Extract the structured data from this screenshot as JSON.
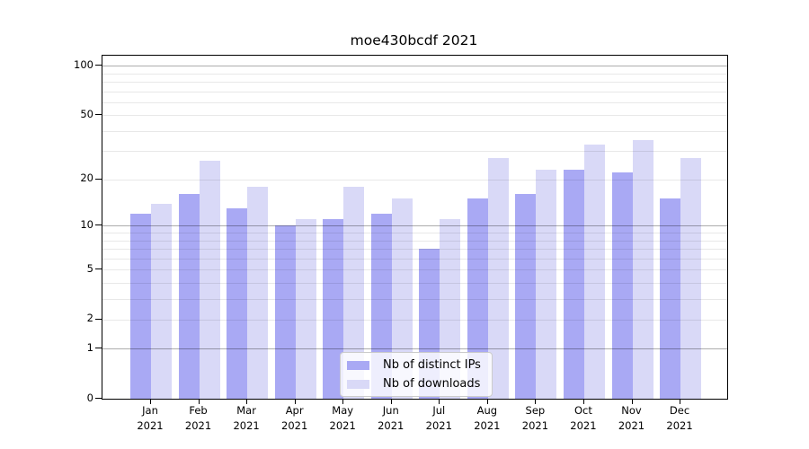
{
  "chart_data": {
    "type": "bar",
    "title": "moe430bcdf 2021",
    "x_categories": [
      "Jan",
      "Feb",
      "Mar",
      "Apr",
      "May",
      "Jun",
      "Jul",
      "Aug",
      "Sep",
      "Oct",
      "Nov",
      "Dec"
    ],
    "x_sublabel": "2021",
    "series": [
      {
        "name": "Nb of distinct IPs",
        "color": "#a9a9f4",
        "values": [
          12,
          16,
          13,
          10,
          11,
          12,
          7,
          15,
          16,
          23,
          22,
          15
        ]
      },
      {
        "name": "Nb of downloads",
        "color": "#d9d9f7",
        "values": [
          14,
          26,
          18,
          11,
          18,
          15,
          11,
          27,
          23,
          33,
          35,
          27
        ]
      }
    ],
    "y_axis": {
      "scale": "log1p",
      "ticks": [
        0,
        1,
        2,
        5,
        10,
        20,
        50,
        100
      ],
      "major_gridlines": [
        1,
        10,
        100
      ],
      "minor_gridlines": [
        2,
        3,
        4,
        5,
        6,
        7,
        8,
        9,
        20,
        30,
        40,
        50,
        60,
        70,
        80,
        90
      ],
      "ylim": [
        0,
        115
      ]
    },
    "xlabel": "",
    "ylabel": "",
    "grid": "on",
    "legend": {
      "position": "lower center",
      "entries": [
        "Nb of distinct IPs",
        "Nb of downloads"
      ]
    }
  }
}
